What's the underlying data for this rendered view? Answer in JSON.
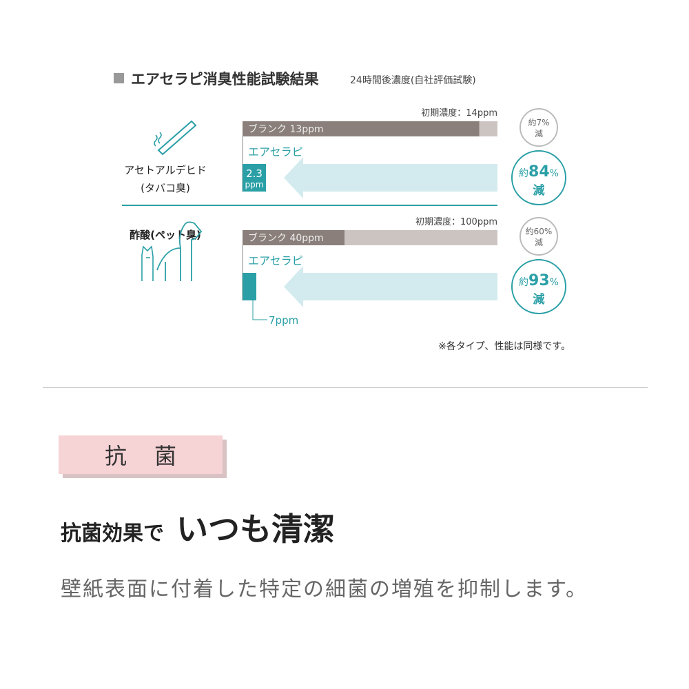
{
  "chart_data": {
    "type": "bar",
    "title": "エアセラピ消臭性能試験結果",
    "subtitle": "24時間後濃度(自社評価試験)",
    "unit": "ppm",
    "groups": [
      {
        "name": "アセトアルデヒド",
        "sub": "(タバコ臭)",
        "icon": "cigarette-icon",
        "initial_label": "初期濃度：14ppm",
        "initial": 14,
        "blank_label": "ブランク 13ppm",
        "blank": 13,
        "product_label": "エアセラピ",
        "product": 2.3,
        "product_value_text": "2.3",
        "product_unit_text": "ppm",
        "blank_reduction": [
          "約7%",
          "減"
        ],
        "product_reduction": {
          "prefix": "約",
          "value": "84",
          "pct": "%",
          "suffix": "減"
        }
      },
      {
        "name": "酢酸",
        "sub": "(ペット臭)",
        "icon": "pet-icon",
        "initial_label": "初期濃度：100ppm",
        "initial": 100,
        "blank_label": "ブランク  40ppm",
        "blank": 40,
        "product_label": "エアセラピ",
        "product": 7,
        "product_value_text": "7ppm",
        "blank_reduction": [
          "約60%",
          "減"
        ],
        "product_reduction": {
          "prefix": "約",
          "value": "93",
          "pct": "%",
          "suffix": "減"
        }
      }
    ],
    "footnote": "※各タイプ、性能は同様です。"
  },
  "colors": {
    "teal": "#2a9fa6",
    "light_teal": "#d3ebee",
    "blank": "#8a7f7a",
    "track": "#ccc4c1",
    "pink": "#f6d3d5"
  },
  "section": {
    "badge": "抗菌",
    "heading_small": "抗菌効果で",
    "heading_big": "いつも清潔",
    "description": "壁紙表面に付着した特定の細菌の増殖を抑制します。"
  }
}
